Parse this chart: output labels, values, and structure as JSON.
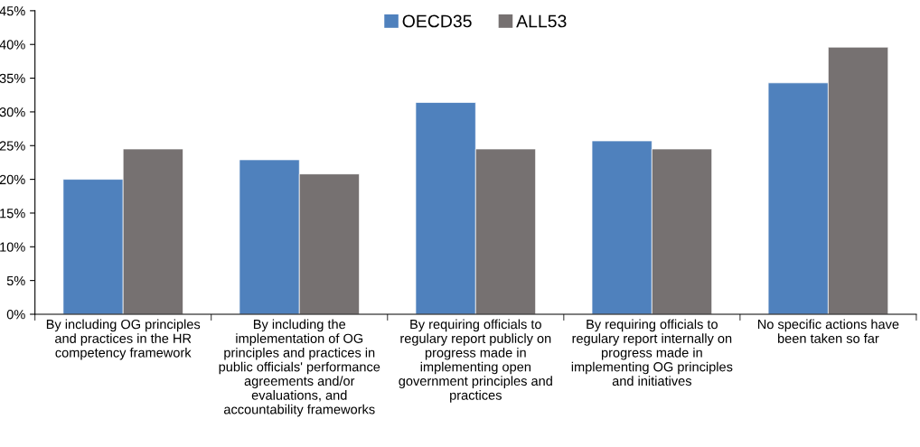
{
  "chart_data": {
    "type": "bar",
    "categories": [
      "By including OG principles\nand practices in the HR\ncompetency framework",
      "By including the\nimplementation of OG\nprinciples and practices in\npublic officials' performance\nagreements and/or\nevaluations, and\naccountability frameworks",
      "By requiring officials to\nregulary report publicly on\nprogress made in\nimplementing open\ngovernment principles and\npractices",
      "By requiring officials to\nregulary report internally on\nprogress made in\nimplementing OG principles\nand initiatives",
      "No specific actions have\nbeen taken so far"
    ],
    "series": [
      {
        "name": "OECD35",
        "color": "#4f81bd",
        "values": [
          20.0,
          22.9,
          31.4,
          25.7,
          34.3
        ]
      },
      {
        "name": "ALL53",
        "color": "#767171",
        "values": [
          24.5,
          20.8,
          24.5,
          24.5,
          39.6
        ]
      }
    ],
    "ylim": [
      0,
      45
    ],
    "yticks": [
      {
        "value": 0,
        "label": "0%"
      },
      {
        "value": 5,
        "label": "5%"
      },
      {
        "value": 10,
        "label": "10%"
      },
      {
        "value": 15,
        "label": "15%"
      },
      {
        "value": 20,
        "label": "20%"
      },
      {
        "value": 25,
        "label": "25%"
      },
      {
        "value": 30,
        "label": "30%"
      },
      {
        "value": 35,
        "label": "35%"
      },
      {
        "value": 40,
        "label": "40%"
      },
      {
        "value": 45,
        "label": "45%"
      }
    ],
    "grid": false,
    "legend": "top"
  }
}
